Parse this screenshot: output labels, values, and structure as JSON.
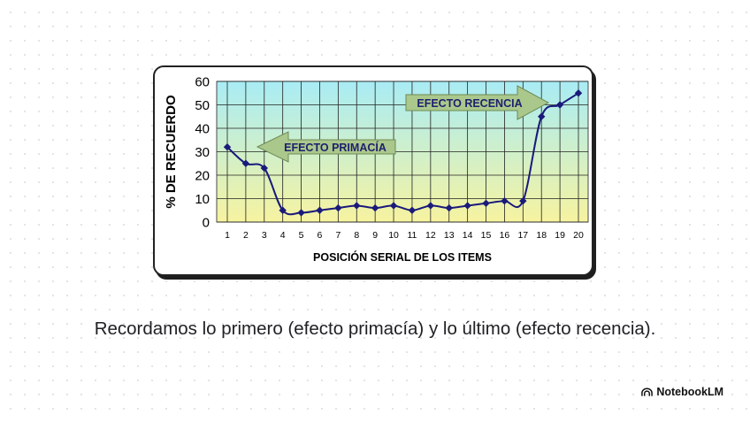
{
  "chart_data": {
    "type": "line",
    "x": [
      1,
      2,
      3,
      4,
      5,
      6,
      7,
      8,
      9,
      10,
      11,
      12,
      13,
      14,
      15,
      16,
      17,
      18,
      19,
      20
    ],
    "series": [
      {
        "values": [
          32,
          25,
          23,
          5,
          4,
          5,
          6,
          7,
          6,
          7,
          5,
          7,
          6,
          7,
          8,
          9,
          9,
          45,
          50,
          55
        ],
        "color": "#1a1a7a"
      }
    ],
    "xlabel": "POSICIÓN SERIAL DE LOS ITEMS",
    "ylabel": "% DE RECUERDO",
    "ylim": [
      0,
      60
    ],
    "yticks": [
      0,
      10,
      20,
      30,
      40,
      50,
      60
    ],
    "xticks": [
      "1",
      "2",
      "3",
      "4",
      "5",
      "6",
      "7",
      "8",
      "9",
      "10",
      "11",
      "12",
      "13",
      "14",
      "15",
      "16",
      "17",
      "18",
      "19",
      "20"
    ],
    "grid": true,
    "background_gradient": [
      "#a8ecf5",
      "#f7f3a0"
    ],
    "annotations": [
      {
        "text": "EFECTO PRIMACÍA",
        "direction": "left",
        "fill": "#aac88c"
      },
      {
        "text": "EFECTO RECENCIA",
        "direction": "right",
        "fill": "#aac88c"
      }
    ]
  },
  "caption": "Recordamos lo primero (efecto primacía) y lo último (efecto recencia).",
  "brand": {
    "name": "NotebookLM",
    "icon": "notebooklm-logo-icon"
  }
}
